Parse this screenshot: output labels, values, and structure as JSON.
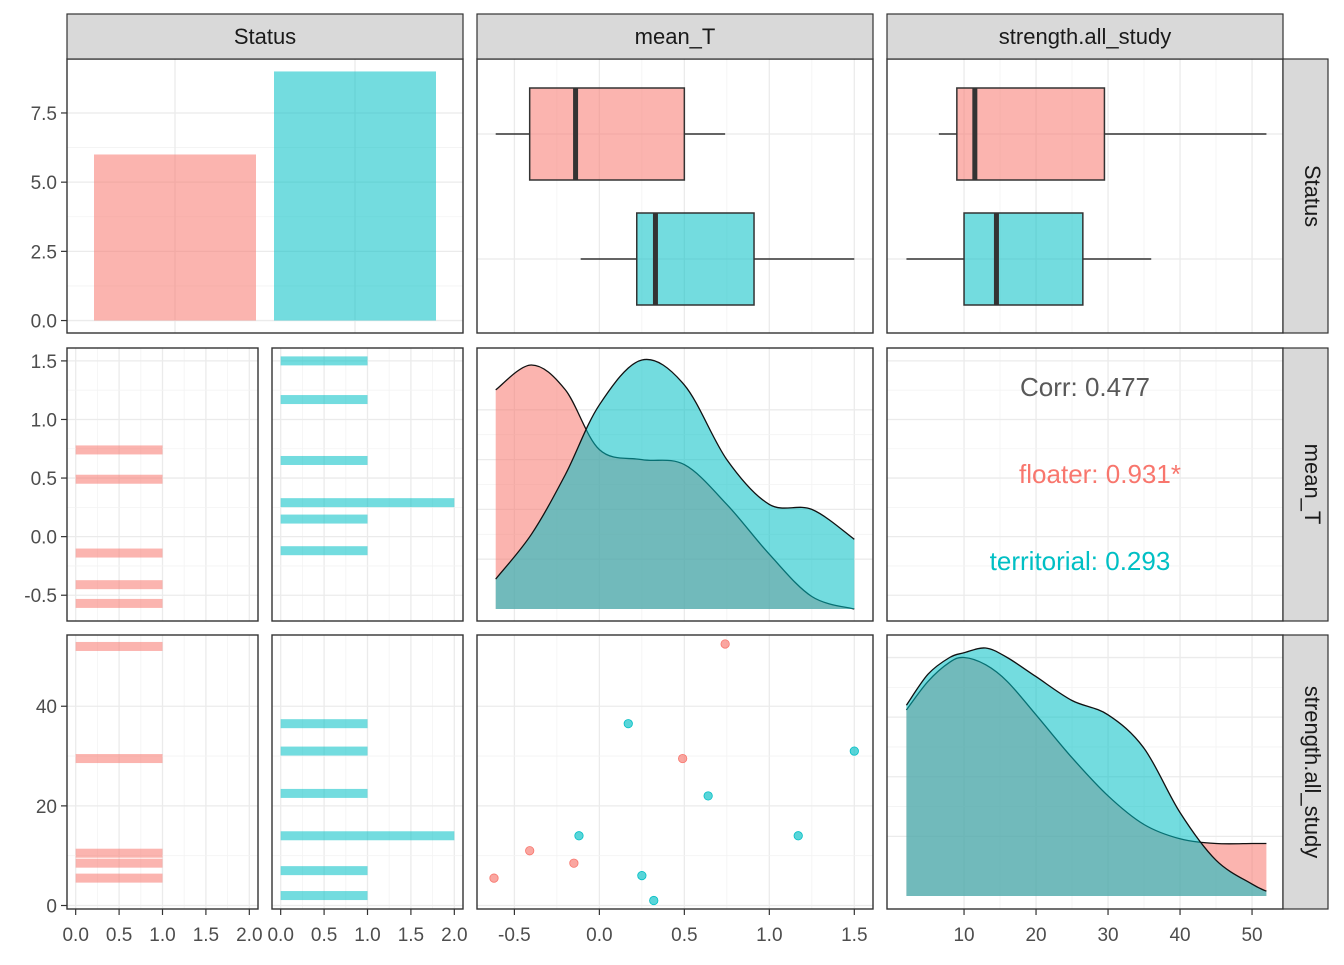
{
  "strips": {
    "top": [
      "Status",
      "mean_T",
      "strength.all_study"
    ],
    "right": [
      "Status",
      "mean_T",
      "strength.all_study"
    ]
  },
  "colors": {
    "floater": "#F8766D",
    "territorial": "#00BFC4",
    "overlap": "#5a9e9f"
  },
  "chart_data": {
    "type": "scatter",
    "layout": "pairs-plot (ggpairs)",
    "variables": [
      "Status",
      "mean_T",
      "strength.all_study"
    ],
    "groups": [
      "floater",
      "territorial"
    ],
    "grid": true,
    "axes": {
      "Status_count": {
        "ticks": [
          0.0,
          2.5,
          5.0,
          7.5
        ],
        "tick_labels": [
          "0.0",
          "2.5",
          "5.0",
          "7.5"
        ],
        "range": [
          -0.45,
          9.45
        ]
      },
      "mean_T": {
        "ticks": [
          -0.5,
          0.0,
          0.5,
          1.0,
          1.5
        ],
        "tick_labels": [
          "-0.5",
          "0.0",
          "0.5",
          "1.0",
          "1.5"
        ],
        "range": [
          -0.72,
          1.61
        ]
      },
      "strength": {
        "ticks": [
          0,
          20,
          40
        ],
        "tick_labels": [
          "0",
          "20",
          "40"
        ],
        "x_ticks": [
          10,
          20,
          30,
          40,
          50
        ],
        "x_tick_labels": [
          "10",
          "20",
          "30",
          "40",
          "50"
        ],
        "range": [
          -0.7,
          54.3
        ]
      },
      "facet_count": {
        "ticks": [
          0,
          0.5,
          1,
          1.5,
          2
        ],
        "tick_labels": [
          "0.0",
          "0.5",
          "1.0",
          "1.5",
          "2.0"
        ],
        "range": [
          -0.1,
          2.1
        ]
      }
    },
    "bar": {
      "categories": [
        "floater",
        "territorial"
      ],
      "values": [
        6,
        9
      ]
    },
    "boxplots": {
      "mean_T": [
        {
          "group": "floater",
          "min": -0.61,
          "q1": -0.41,
          "median": -0.14,
          "q3": 0.5,
          "max": 0.74
        },
        {
          "group": "territorial",
          "min": -0.11,
          "q1": 0.22,
          "median": 0.33,
          "q3": 0.91,
          "max": 1.5
        }
      ],
      "strength": [
        {
          "group": "floater",
          "min": 6.5,
          "q1": 9.0,
          "median": 11.5,
          "q3": 29.5,
          "max": 52.0
        },
        {
          "group": "territorial",
          "min": 2.0,
          "q1": 10.0,
          "median": 14.5,
          "q3": 26.5,
          "max": 36.0
        }
      ]
    },
    "facet_bars_mean_T": [
      {
        "group": "floater",
        "values": [
          0.74,
          0.49,
          -0.14,
          -0.41,
          -0.57
        ],
        "counts": [
          1,
          1,
          1,
          1,
          1
        ]
      },
      {
        "group": "territorial",
        "values": [
          1.5,
          1.17,
          0.65,
          0.29,
          0.15,
          -0.12
        ],
        "counts": [
          1,
          1,
          1,
          2,
          1,
          1
        ]
      }
    ],
    "facet_bars_strength": [
      {
        "group": "floater",
        "values": [
          52,
          29.5,
          10.5,
          8.5,
          5.5
        ],
        "counts": [
          1,
          1,
          1,
          1,
          1
        ]
      },
      {
        "group": "territorial",
        "values": [
          36.5,
          31,
          22.5,
          14,
          7,
          2
        ],
        "counts": [
          1,
          1,
          1,
          2,
          1,
          1
        ]
      }
    ],
    "density_mean_T": {
      "x": [
        -0.61,
        -0.4,
        -0.2,
        0.0,
        0.25,
        0.5,
        0.75,
        1.0,
        1.25,
        1.5
      ],
      "floater": [
        0.88,
        0.98,
        0.88,
        0.64,
        0.6,
        0.58,
        0.42,
        0.22,
        0.05,
        0.0
      ],
      "territorial": [
        0.12,
        0.3,
        0.54,
        0.82,
        1.0,
        0.9,
        0.6,
        0.42,
        0.4,
        0.28
      ]
    },
    "density_strength": {
      "x": [
        2,
        5,
        8,
        10,
        13,
        16,
        20,
        25,
        30,
        35,
        40,
        45,
        50,
        52
      ],
      "floater": [
        0.78,
        0.9,
        0.98,
        1.0,
        0.97,
        0.9,
        0.76,
        0.58,
        0.42,
        0.3,
        0.24,
        0.22,
        0.22,
        0.22
      ],
      "territorial": [
        0.8,
        0.93,
        1.0,
        1.02,
        1.04,
        1.0,
        0.92,
        0.82,
        0.76,
        0.62,
        0.35,
        0.15,
        0.05,
        0.02
      ]
    },
    "scatter": [
      {
        "group": "floater",
        "x": 0.74,
        "y": 52.5
      },
      {
        "group": "floater",
        "x": 0.49,
        "y": 29.5
      },
      {
        "group": "floater",
        "x": -0.41,
        "y": 11.0
      },
      {
        "group": "floater",
        "x": -0.15,
        "y": 8.5
      },
      {
        "group": "floater",
        "x": -0.62,
        "y": 5.5
      },
      {
        "group": "territorial",
        "x": 0.17,
        "y": 36.5
      },
      {
        "group": "territorial",
        "x": 1.5,
        "y": 31.0
      },
      {
        "group": "territorial",
        "x": 0.64,
        "y": 22.0
      },
      {
        "group": "territorial",
        "x": -0.12,
        "y": 14.0
      },
      {
        "group": "territorial",
        "x": 1.17,
        "y": 14.0
      },
      {
        "group": "territorial",
        "x": 0.25,
        "y": 6.0
      },
      {
        "group": "territorial",
        "x": 0.32,
        "y": 1.0
      }
    ],
    "correlation": {
      "corr_label": "Corr: 0.477",
      "floater_label": "floater: 0.931*",
      "territorial_label": "territorial: 0.293"
    }
  }
}
